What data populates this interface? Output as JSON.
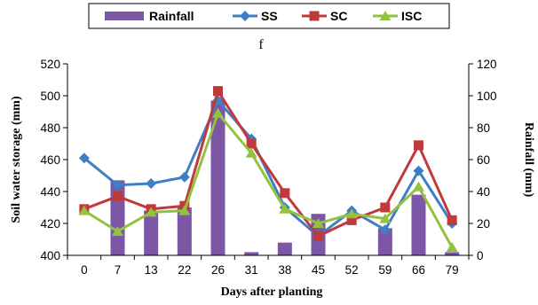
{
  "chart_data": {
    "type": "bar+line",
    "title": "f",
    "xlabel": "Days after planting",
    "ylabel": "Soil water storage (mm)",
    "y2label": "Rainfall (mm)",
    "categories": [
      "0",
      "7",
      "13",
      "22",
      "26",
      "31",
      "38",
      "45",
      "52",
      "59",
      "66",
      "79"
    ],
    "ylim": [
      400,
      520
    ],
    "yticks": [
      400,
      420,
      440,
      460,
      480,
      500,
      520
    ],
    "y2lim": [
      0,
      120
    ],
    "y2ticks": [
      0,
      20,
      40,
      60,
      80,
      100,
      120
    ],
    "legend_position": "top",
    "bar_series": {
      "name": "Rainfall",
      "axis": "right",
      "color": "#7b57a6",
      "values": [
        0,
        47,
        28,
        30,
        97,
        2,
        8,
        26,
        0,
        17,
        38,
        2
      ]
    },
    "series": [
      {
        "name": "SS",
        "axis": "left",
        "marker": "diamond",
        "color": "#3e7ec5",
        "values": [
          461,
          444,
          445,
          449,
          497,
          473,
          430,
          412,
          428,
          416,
          453,
          420
        ]
      },
      {
        "name": "SC",
        "axis": "left",
        "marker": "square",
        "color": "#c0393b",
        "values": [
          429,
          437,
          429,
          431,
          503,
          470,
          439,
          412,
          422,
          430,
          469,
          422
        ]
      },
      {
        "name": "ISC",
        "axis": "left",
        "marker": "triangle",
        "color": "#92c23e",
        "values": [
          428,
          415,
          427,
          428,
          489,
          464,
          429,
          420,
          426,
          423,
          443,
          405
        ]
      }
    ]
  }
}
